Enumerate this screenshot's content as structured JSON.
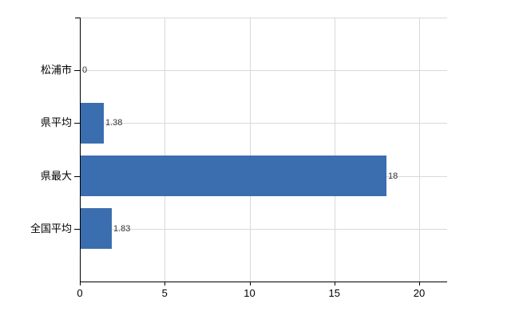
{
  "chart_data": {
    "type": "bar",
    "orientation": "horizontal",
    "title": "",
    "xlabel": "",
    "ylabel": "",
    "categories": [
      "松浦市",
      "県平均",
      "県最大",
      "全国平均"
    ],
    "values": [
      0,
      1.38,
      18,
      1.83
    ],
    "value_labels": [
      "0",
      "1.38",
      "18",
      "1.83"
    ],
    "x_ticks": [
      0,
      5,
      10,
      15,
      20
    ],
    "x_tick_labels": [
      "0",
      "5",
      "10",
      "15",
      "20"
    ],
    "xlim": [
      0,
      21.6
    ],
    "grid": true,
    "legend": false,
    "colors": {
      "bar": "#3b6eae",
      "grid": "#d9d9d9",
      "axis": "#000000",
      "category_label": "#000000",
      "tick_label": "#000000",
      "value_label": "#333333",
      "background": "#ffffff"
    }
  }
}
